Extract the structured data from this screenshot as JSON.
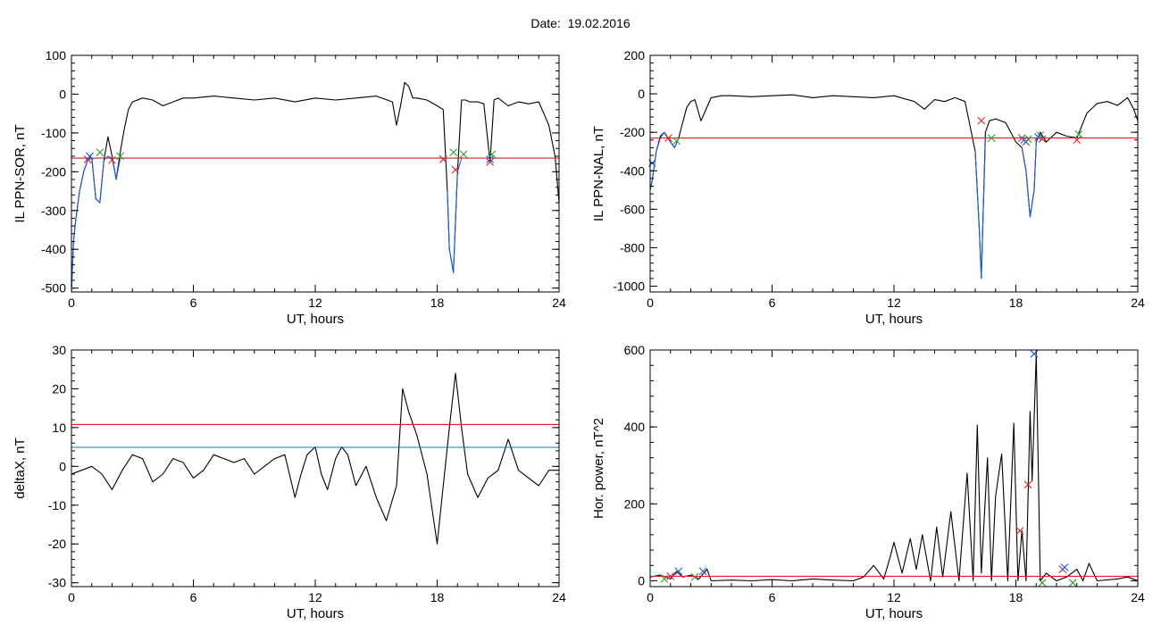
{
  "figure": {
    "title": "Date:  19.02.2016"
  },
  "chart_data": [
    {
      "type": "line",
      "id": "ppn-sor",
      "xlabel": "UT, hours",
      "ylabel": "IL PPN-SOR, nT",
      "xlim": [
        0,
        24
      ],
      "ylim": [
        -510,
        100
      ],
      "xticks": [
        0,
        6,
        12,
        18,
        24
      ],
      "yticks": [
        -500,
        -400,
        -300,
        -200,
        -100,
        0,
        100
      ],
      "grid": false,
      "series": [
        {
          "color": "#000000",
          "x": [
            0,
            0.1,
            0.2,
            0.4,
            0.6,
            0.8,
            1.0,
            1.2,
            1.4,
            1.6,
            1.8,
            2.0,
            2.2,
            2.4,
            2.6,
            2.8,
            3.0,
            3.5,
            4.0,
            4.5,
            5.0,
            5.5,
            6,
            7,
            8,
            9,
            10,
            11,
            12,
            13,
            14,
            15,
            15.8,
            16.0,
            16.2,
            16.4,
            16.6,
            16.8,
            17.0,
            17.5,
            18.0,
            18.3,
            18.5,
            18.6,
            18.8,
            19.0,
            19.2,
            19.4,
            19.6,
            20.0,
            20.3,
            20.6,
            20.8,
            21.0,
            21.5,
            22.0,
            22.5,
            23.0,
            23.5,
            23.8,
            24
          ],
          "y": [
            -510,
            -380,
            -330,
            -250,
            -200,
            -170,
            -165,
            -270,
            -280,
            -170,
            -110,
            -160,
            -220,
            -150,
            -90,
            -40,
            -20,
            -10,
            -15,
            -30,
            -20,
            -10,
            -10,
            -5,
            -10,
            -15,
            -10,
            -20,
            -10,
            -15,
            -10,
            -5,
            -20,
            -80,
            -30,
            30,
            20,
            -10,
            -10,
            -15,
            -30,
            -40,
            -250,
            -400,
            -460,
            -200,
            -15,
            -15,
            -20,
            -20,
            -25,
            -175,
            -15,
            -10,
            -30,
            -20,
            -25,
            -20,
            -80,
            -160,
            -280
          ]
        },
        {
          "color": "#e41a1c",
          "x": [
            0,
            24
          ],
          "y": [
            -165,
            -165
          ]
        },
        {
          "color": "#1f5fd6",
          "x": [
            0,
            0.1,
            0.2,
            0.4,
            0.6,
            0.8,
            1.0,
            1.2,
            1.4,
            1.6,
            1.8,
            2.0,
            2.2,
            2.4
          ],
          "y": [
            -510,
            -380,
            -330,
            -250,
            -200,
            -170,
            -165,
            -270,
            -280,
            -170,
            -160,
            -165,
            -220,
            -165
          ]
        },
        {
          "color": "#1f5fd6",
          "x": [
            18.5,
            18.6,
            18.8,
            19.0,
            19.2
          ],
          "y": [
            -250,
            -400,
            -460,
            -200,
            -165
          ]
        }
      ],
      "markers": [
        {
          "color": "#d62728",
          "x": 0.8,
          "y": -168
        },
        {
          "color": "#d62728",
          "x": 2.0,
          "y": -170
        },
        {
          "color": "#d62728",
          "x": 18.3,
          "y": -168
        },
        {
          "color": "#d62728",
          "x": 18.9,
          "y": -195
        },
        {
          "color": "#d62728",
          "x": 20.6,
          "y": -175
        },
        {
          "color": "#2ca02c",
          "x": 1.4,
          "y": -150
        },
        {
          "color": "#2ca02c",
          "x": 2.4,
          "y": -160
        },
        {
          "color": "#2ca02c",
          "x": 18.8,
          "y": -150
        },
        {
          "color": "#2ca02c",
          "x": 19.3,
          "y": -155
        },
        {
          "color": "#2ca02c",
          "x": 20.7,
          "y": -155
        },
        {
          "color": "#1f5fd6",
          "x": 0.9,
          "y": -160
        },
        {
          "color": "#1f5fd6",
          "x": 20.6,
          "y": -168
        }
      ]
    },
    {
      "type": "line",
      "id": "ppn-nal",
      "xlabel": "UT, hours",
      "ylabel": "IL PPN-NAL, nT",
      "xlim": [
        0,
        24
      ],
      "ylim": [
        -1030,
        200
      ],
      "xticks": [
        0,
        6,
        12,
        18,
        24
      ],
      "yticks": [
        -1000,
        -800,
        -600,
        -400,
        -200,
        0,
        200
      ],
      "grid": false,
      "series": [
        {
          "color": "#000000",
          "x": [
            0,
            0.1,
            0.3,
            0.5,
            0.7,
            1.0,
            1.2,
            1.4,
            1.6,
            1.8,
            2.0,
            2.2,
            2.5,
            3.0,
            3.5,
            4.0,
            5,
            6,
            7,
            8,
            9,
            10,
            11,
            12,
            13,
            13.5,
            14,
            14.5,
            15,
            15.5,
            16.0,
            16.2,
            16.3,
            16.5,
            16.7,
            17.0,
            17.5,
            18.0,
            18.3,
            18.5,
            18.7,
            18.9,
            19.0,
            19.2,
            19.5,
            20,
            20.5,
            21,
            21.5,
            22,
            22.5,
            23,
            23.5,
            23.8,
            24
          ],
          "y": [
            -500,
            -450,
            -300,
            -220,
            -200,
            -250,
            -280,
            -230,
            -150,
            -70,
            -40,
            -30,
            -140,
            -20,
            -10,
            -10,
            -15,
            -10,
            -5,
            -20,
            -10,
            -15,
            -20,
            -10,
            -40,
            -80,
            -30,
            -40,
            -20,
            -40,
            -300,
            -700,
            -960,
            -200,
            -140,
            -130,
            -150,
            -250,
            -280,
            -400,
            -640,
            -500,
            -250,
            -200,
            -250,
            -200,
            -220,
            -230,
            -100,
            -50,
            -40,
            -60,
            -20,
            -80,
            -140
          ]
        },
        {
          "color": "#e41a1c",
          "x": [
            0,
            24
          ],
          "y": [
            -230,
            -230
          ]
        },
        {
          "color": "#1f5fd6",
          "x": [
            0,
            0.1,
            0.3,
            0.5,
            0.7,
            1.0,
            1.2,
            1.4
          ],
          "y": [
            -500,
            -450,
            -300,
            -230,
            -200,
            -250,
            -280,
            -230
          ]
        },
        {
          "color": "#1f5fd6",
          "x": [
            16.0,
            16.2,
            16.3,
            16.5
          ],
          "y": [
            -300,
            -700,
            -960,
            -230
          ]
        },
        {
          "color": "#1f5fd6",
          "x": [
            18.3,
            18.5,
            18.7,
            18.9,
            19.0
          ],
          "y": [
            -280,
            -400,
            -640,
            -500,
            -250
          ]
        }
      ],
      "markers": [
        {
          "color": "#d62728",
          "x": 0.9,
          "y": -230
        },
        {
          "color": "#d62728",
          "x": 16.3,
          "y": -140
        },
        {
          "color": "#d62728",
          "x": 18.3,
          "y": -230
        },
        {
          "color": "#d62728",
          "x": 18.5,
          "y": -250
        },
        {
          "color": "#d62728",
          "x": 19.3,
          "y": -235
        },
        {
          "color": "#d62728",
          "x": 21.0,
          "y": -240
        },
        {
          "color": "#2ca02c",
          "x": 1.3,
          "y": -245
        },
        {
          "color": "#2ca02c",
          "x": 16.8,
          "y": -230
        },
        {
          "color": "#2ca02c",
          "x": 18.6,
          "y": -235
        },
        {
          "color": "#2ca02c",
          "x": 19.2,
          "y": -215
        },
        {
          "color": "#2ca02c",
          "x": 21.1,
          "y": -210
        },
        {
          "color": "#1f5fd6",
          "x": 0.1,
          "y": -360
        },
        {
          "color": "#1f5fd6",
          "x": 18.4,
          "y": -240
        },
        {
          "color": "#1f5fd6",
          "x": 19.1,
          "y": -225
        }
      ]
    },
    {
      "type": "line",
      "id": "deltax",
      "xlabel": "UT, hours",
      "ylabel": "deltaX, nT",
      "xlim": [
        0,
        24
      ],
      "ylim": [
        -31,
        30
      ],
      "xticks": [
        0,
        6,
        12,
        18,
        24
      ],
      "yticks": [
        -30,
        -20,
        -10,
        0,
        10,
        20,
        30
      ],
      "grid": false,
      "series": [
        {
          "color": "#000000",
          "x": [
            0,
            0.5,
            1.0,
            1.5,
            2.0,
            2.5,
            3.0,
            3.5,
            4.0,
            4.5,
            5.0,
            5.5,
            6.0,
            6.5,
            7.0,
            7.5,
            8.0,
            8.5,
            9.0,
            9.5,
            10.0,
            10.5,
            11.0,
            11.3,
            11.6,
            12.0,
            12.3,
            12.6,
            13.0,
            13.3,
            13.6,
            14.0,
            14.5,
            15.0,
            15.5,
            16.0,
            16.3,
            16.6,
            17.0,
            17.5,
            18.0,
            18.3,
            18.6,
            18.9,
            19.2,
            19.5,
            20.0,
            20.5,
            21.0,
            21.5,
            22.0,
            22.5,
            23.0,
            23.5,
            24
          ],
          "y": [
            -2,
            -1,
            0,
            -2,
            -6,
            -1,
            3,
            2,
            -4,
            -2,
            2,
            1,
            -3,
            -1,
            3,
            2,
            1,
            2,
            -2,
            0,
            2,
            3,
            -8,
            -2,
            3,
            5,
            -2,
            -6,
            2,
            5,
            3,
            -5,
            0,
            -8,
            -14,
            -5,
            20,
            14,
            8,
            -2,
            -20,
            -5,
            10,
            24,
            10,
            -2,
            -8,
            -3,
            -1,
            7,
            -1,
            -3,
            -5,
            -1,
            -1
          ]
        },
        {
          "color": "#e41a1c",
          "x": [
            0,
            24
          ],
          "y": [
            10.8,
            10.8
          ]
        },
        {
          "color": "#1f77b4",
          "x": [
            0,
            24
          ],
          "y": [
            4.9,
            4.9
          ]
        }
      ],
      "markers": []
    },
    {
      "type": "line",
      "id": "hor-power",
      "xlabel": "UT, hours",
      "ylabel": "Hor. power, nT^2",
      "xlim": [
        0,
        24
      ],
      "ylim": [
        -15,
        600
      ],
      "xticks": [
        0,
        6,
        12,
        18,
        24
      ],
      "yticks": [
        0,
        200,
        400,
        600
      ],
      "grid": false,
      "series": [
        {
          "color": "#000000",
          "x": [
            0,
            0.5,
            1.0,
            1.3,
            1.6,
            2.0,
            2.4,
            2.8,
            3.0,
            4,
            5,
            6,
            7,
            8,
            9,
            10,
            10.5,
            11.0,
            11.5,
            11.8,
            12.0,
            12.4,
            12.8,
            13.1,
            13.4,
            13.8,
            14.1,
            14.4,
            14.8,
            15.2,
            15.6,
            15.9,
            16.1,
            16.3,
            16.6,
            16.8,
            17.0,
            17.3,
            17.6,
            17.9,
            18.1,
            18.3,
            18.5,
            18.7,
            18.8,
            19.0,
            19.2,
            19.5,
            20.0,
            20.5,
            21.0,
            21.3,
            21.6,
            22,
            23,
            23.5,
            24
          ],
          "y": [
            10,
            15,
            5,
            25,
            10,
            15,
            5,
            30,
            0,
            2,
            0,
            3,
            0,
            5,
            2,
            0,
            10,
            40,
            5,
            60,
            100,
            20,
            110,
            30,
            120,
            0,
            140,
            10,
            180,
            0,
            280,
            0,
            405,
            20,
            320,
            0,
            220,
            330,
            0,
            410,
            0,
            130,
            0,
            440,
            260,
            590,
            0,
            20,
            0,
            10,
            30,
            0,
            45,
            0,
            5,
            10,
            0
          ]
        },
        {
          "color": "#e41a1c",
          "x": [
            0,
            24
          ],
          "y": [
            12,
            12
          ]
        }
      ],
      "markers": [
        {
          "color": "#d62728",
          "x": 18.2,
          "y": 130
        },
        {
          "color": "#d62728",
          "x": 18.6,
          "y": 250
        },
        {
          "color": "#d62728",
          "x": 20.3,
          "y": 30
        },
        {
          "color": "#d62728",
          "x": 1.0,
          "y": 12
        },
        {
          "color": "#1f5fd6",
          "x": 18.9,
          "y": 590
        },
        {
          "color": "#1f5fd6",
          "x": 1.4,
          "y": 25
        },
        {
          "color": "#1f5fd6",
          "x": 2.6,
          "y": 25
        },
        {
          "color": "#1f5fd6",
          "x": 20.4,
          "y": 35
        },
        {
          "color": "#2ca02c",
          "x": 0.7,
          "y": 5
        },
        {
          "color": "#2ca02c",
          "x": 2.2,
          "y": 10
        },
        {
          "color": "#2ca02c",
          "x": 19.3,
          "y": -5
        },
        {
          "color": "#2ca02c",
          "x": 20.8,
          "y": -5
        }
      ]
    }
  ]
}
